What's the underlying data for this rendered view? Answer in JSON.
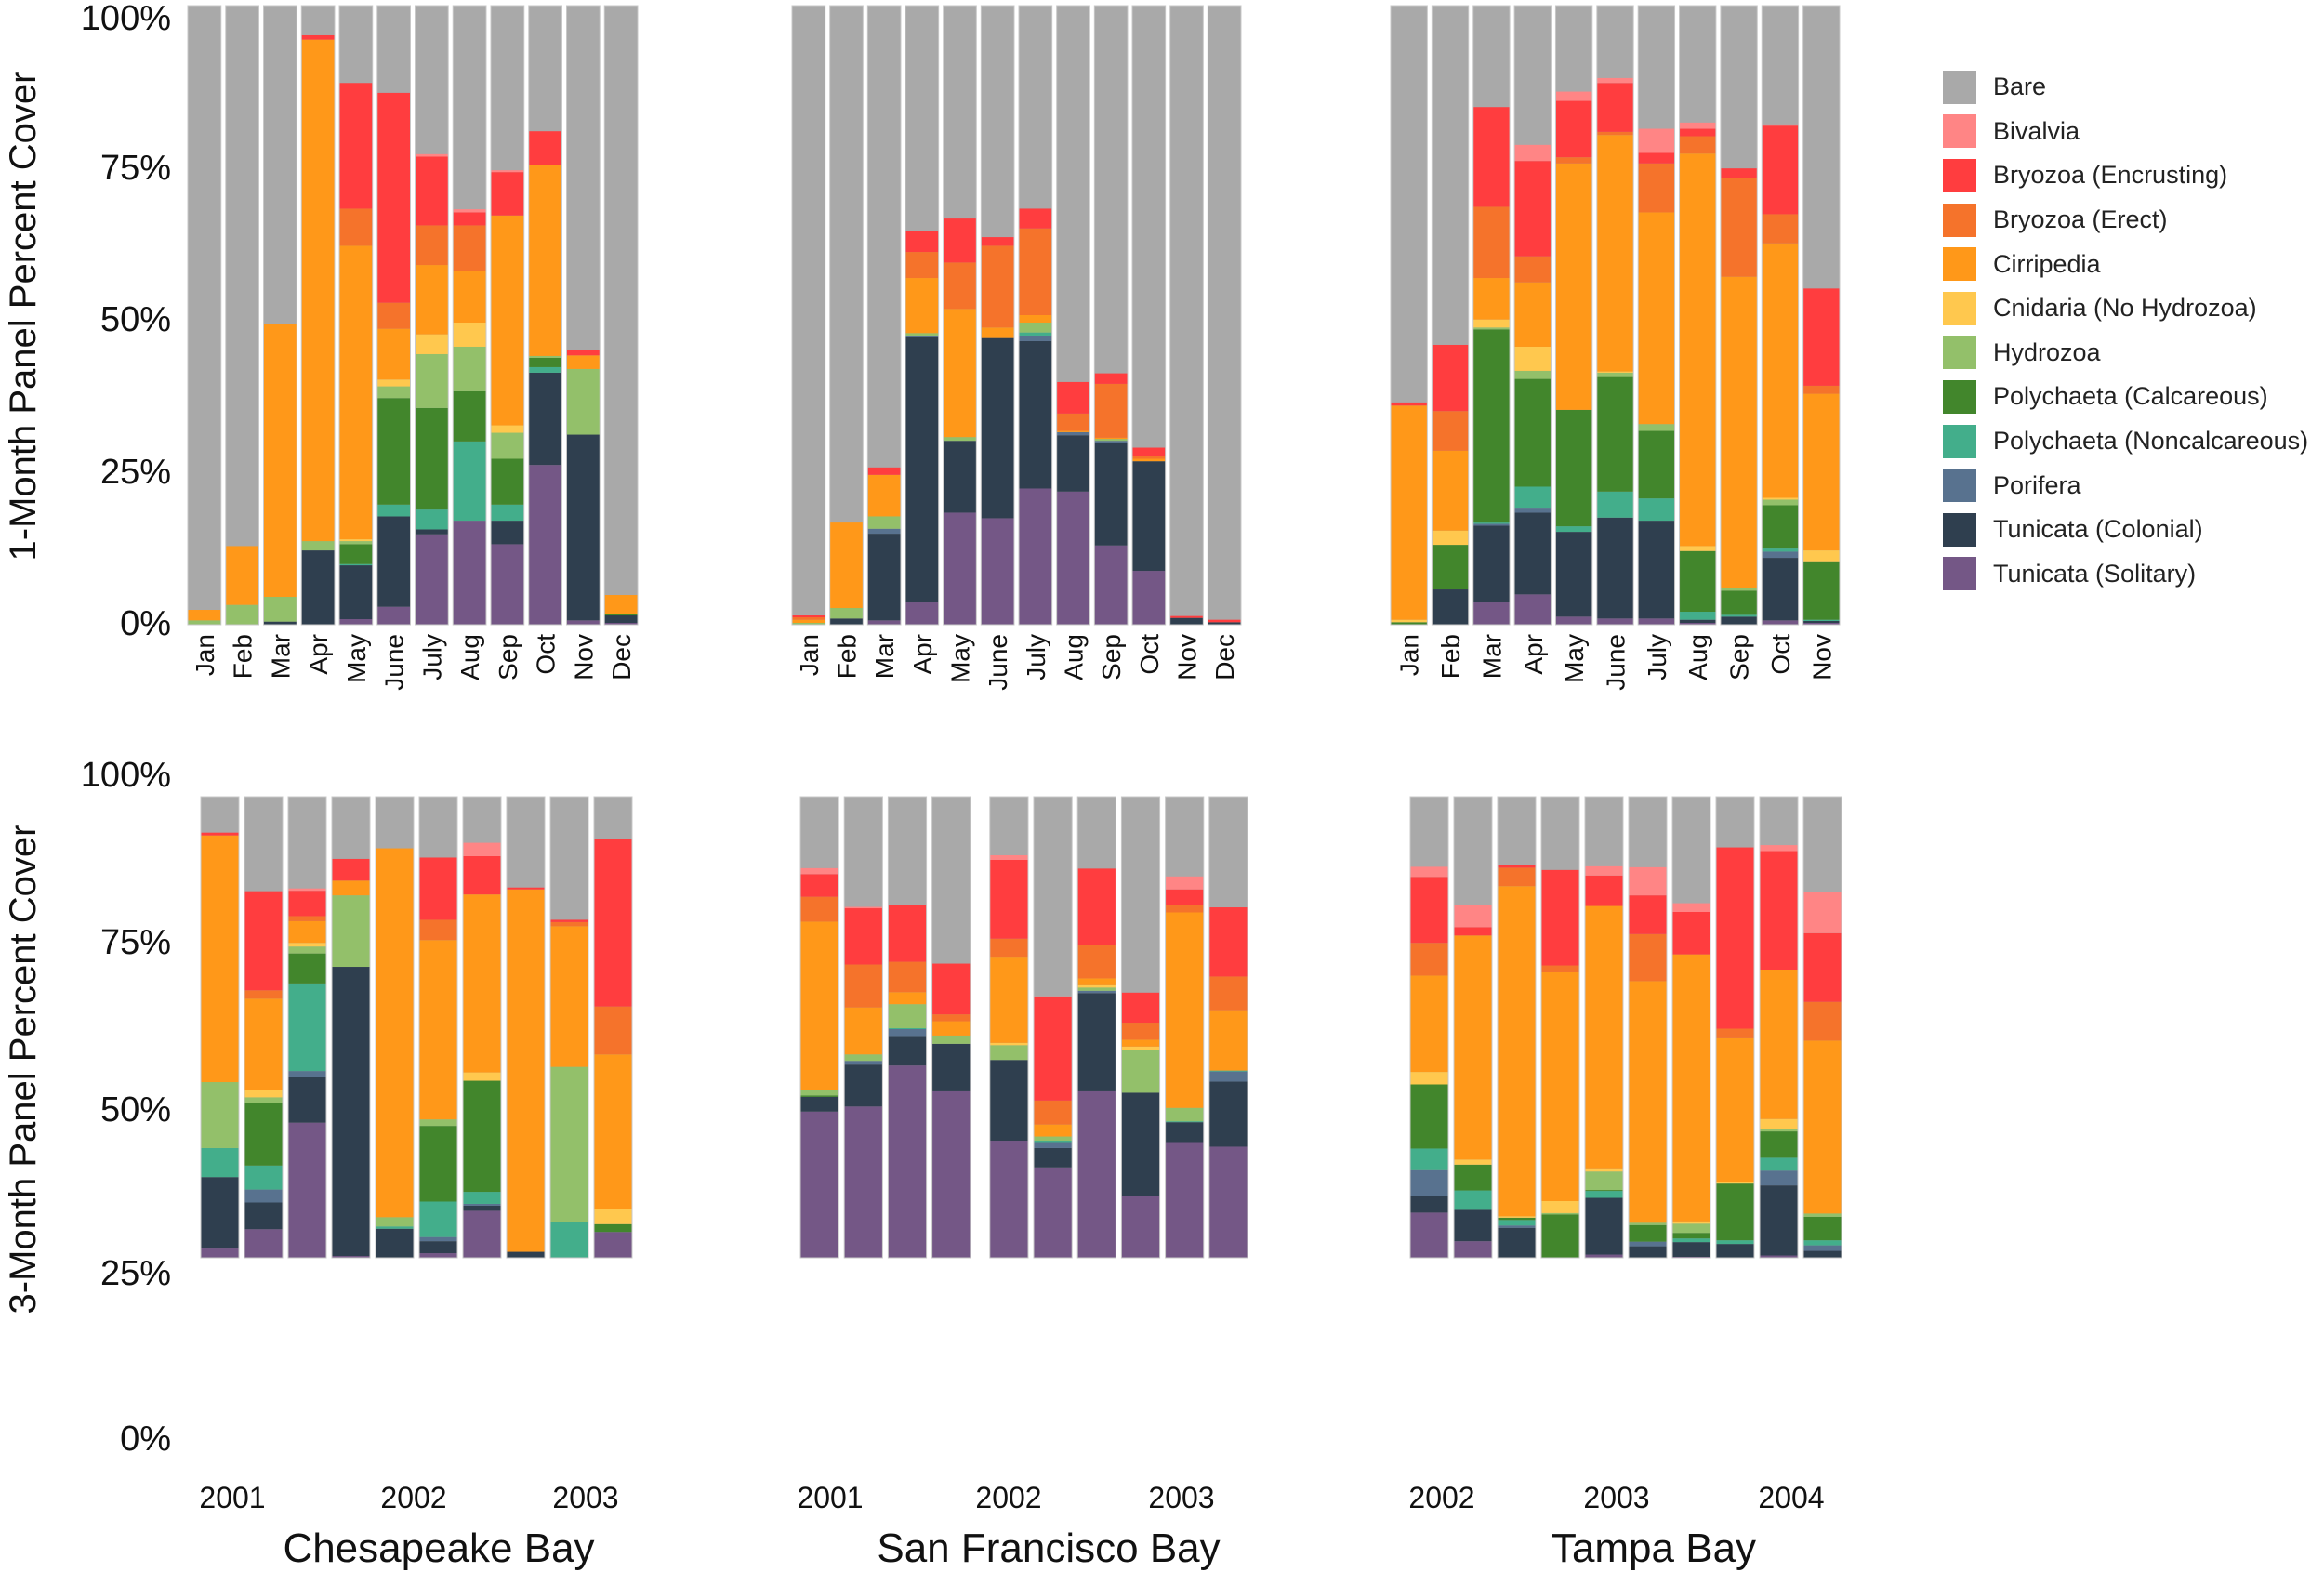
{
  "chart_data": {
    "type": "bar",
    "stacked": true,
    "y_axis_titles": [
      "1-Month Panel Percent Cover",
      "3-Month Panel Percent Cover"
    ],
    "y_ticks": [
      "0%",
      "25%",
      "50%",
      "75%",
      "100%"
    ],
    "ylim": [
      0,
      100
    ],
    "legend_placement": "right",
    "legend": [
      {
        "name": "Bare",
        "color": "#a9a9a9"
      },
      {
        "name": "Bivalvia",
        "color": "#ff8585"
      },
      {
        "name": "Bryozoa (Encrusting)",
        "color": "#ff3d3f"
      },
      {
        "name": "Bryozoa (Erect)",
        "color": "#f5732b"
      },
      {
        "name": "Cirripedia",
        "color": "#ff9819"
      },
      {
        "name": "Cnidaria (No Hydrozoa)",
        "color": "#ffc84e"
      },
      {
        "name": "Hydrozoa",
        "color": "#93c06a"
      },
      {
        "name": "Polychaeta (Calcareous)",
        "color": "#42862c"
      },
      {
        "name": "Polychaeta (Noncalcareous)",
        "color": "#43ae8b"
      },
      {
        "name": "Porifera",
        "color": "#58728f"
      },
      {
        "name": "Tunicata (Colonial)",
        "color": "#2f3f4f"
      },
      {
        "name": "Tunicata (Solitary)",
        "color": "#745786"
      }
    ],
    "stack_order_bottom_to_top": [
      "Tunicata (Solitary)",
      "Tunicata (Colonial)",
      "Porifera",
      "Polychaeta (Noncalcareous)",
      "Polychaeta (Calcareous)",
      "Hydrozoa",
      "Cnidaria (No Hydrozoa)",
      "Cirripedia",
      "Bryozoa (Erect)",
      "Bryozoa (Encrusting)",
      "Bivalvia"
    ],
    "remainder_series": "Bare",
    "panels": [
      {
        "site": "Chesapeake Bay",
        "row": "1-Month",
        "categories": [
          "Jan",
          "Feb",
          "Mar",
          "Apr",
          "May",
          "June",
          "July",
          "Aug",
          "Sep",
          "Oct",
          "Nov",
          "Dec"
        ],
        "bars": [
          [
            0,
            0,
            0,
            0,
            0,
            0.7,
            0,
            1.7,
            0,
            0,
            0
          ],
          [
            0,
            0,
            0,
            0,
            0,
            3.2,
            0,
            9.5,
            0,
            0,
            0
          ],
          [
            0,
            0.5,
            0,
            0,
            0,
            4,
            0,
            44,
            0,
            0,
            0
          ],
          [
            0,
            12,
            0,
            0,
            0,
            1.5,
            0,
            81,
            0,
            0.7,
            0
          ],
          [
            0.9,
            8.7,
            0,
            0.2,
            3.2,
            0.5,
            0.3,
            47.4,
            6,
            20.3,
            0
          ],
          [
            2.9,
            14.6,
            0,
            1.9,
            17.2,
            1.9,
            1.1,
            8.2,
            4.2,
            33.9,
            0
          ],
          [
            14.6,
            0.8,
            0,
            3.2,
            16.4,
            8.7,
            3.2,
            11.2,
            6.4,
            11.1,
            0.4
          ],
          [
            16.8,
            0,
            0,
            12.8,
            8.1,
            7.2,
            3.9,
            8.4,
            7.3,
            2.1,
            0.5
          ],
          [
            13,
            3.8,
            0,
            2.6,
            7.4,
            4.2,
            1.2,
            33.9,
            0,
            7,
            0.3
          ],
          [
            25.8,
            14.9,
            0,
            0.9,
            1.5,
            0.3,
            0,
            30.9,
            0,
            5.4,
            0
          ],
          [
            0.7,
            30,
            0,
            0,
            0,
            10.6,
            0,
            2.2,
            0,
            0.9,
            0
          ],
          [
            0.3,
            1.2,
            0,
            0,
            0.3,
            0,
            0,
            3,
            0,
            0,
            0
          ]
        ]
      },
      {
        "site": "San Francisco Bay",
        "row": "1-Month",
        "categories": [
          "Jan",
          "Feb",
          "Mar",
          "Apr",
          "May",
          "June",
          "July",
          "Aug",
          "Sep",
          "Oct",
          "Nov",
          "Dec"
        ],
        "bars": [
          [
            0,
            0,
            0,
            0,
            0,
            0.3,
            0,
            0.5,
            0.4,
            0.3,
            0
          ],
          [
            0,
            1,
            0,
            0,
            0,
            1.7,
            0,
            13.8,
            0,
            0,
            0
          ],
          [
            0.7,
            14,
            0.8,
            0,
            0,
            2,
            0,
            6.7,
            0,
            1.2,
            0
          ],
          [
            3.6,
            42.8,
            0.3,
            0,
            0,
            0.4,
            0,
            8.9,
            4.2,
            3.4,
            0
          ],
          [
            18.1,
            11.6,
            0,
            0,
            0,
            0.6,
            0,
            20.7,
            7.5,
            7.1,
            0
          ],
          [
            17.2,
            29.1,
            0,
            0,
            0,
            0,
            0,
            1.7,
            13.2,
            1.4,
            0
          ],
          [
            22,
            23.8,
            0.9,
            0.5,
            0,
            1.6,
            0,
            1.2,
            14,
            3.2,
            0
          ],
          [
            21.5,
            9.1,
            0.5,
            0,
            0,
            0,
            0,
            0.2,
            2.8,
            5.1,
            0
          ],
          [
            12.8,
            16.6,
            0.3,
            0,
            0,
            0.3,
            0,
            0.2,
            8.7,
            1.7,
            0
          ],
          [
            8.7,
            17.7,
            0,
            0,
            0,
            0,
            0,
            0.4,
            0.5,
            1.3,
            0
          ],
          [
            0,
            1.1,
            0,
            0,
            0,
            0,
            0,
            0,
            0,
            0.3,
            0
          ],
          [
            0,
            0.4,
            0,
            0,
            0,
            0,
            0,
            0,
            0,
            0.4,
            0
          ]
        ]
      },
      {
        "site": "Tampa Bay",
        "row": "1-Month",
        "categories": [
          "Jan",
          "Feb",
          "Mar",
          "Apr",
          "May",
          "June",
          "July",
          "Aug",
          "Sep",
          "Oct",
          "Nov"
        ],
        "bars": [
          [
            0,
            0,
            0,
            0,
            0.4,
            0,
            0.4,
            34.6,
            0,
            0.5,
            0
          ],
          [
            0,
            5.7,
            0,
            0,
            7.2,
            0,
            2.3,
            12.9,
            6.4,
            10.7,
            0
          ],
          [
            3.6,
            12.4,
            0.3,
            0.2,
            31.2,
            0.3,
            1.3,
            6.7,
            11.5,
            16.1,
            0
          ],
          [
            4.9,
            13.2,
            0.8,
            3.4,
            17.4,
            1.3,
            3.9,
            10.4,
            4.2,
            15.4,
            2.6
          ],
          [
            1.3,
            13.7,
            0,
            0.9,
            18.8,
            0,
            0,
            39.8,
            1,
            9.1,
            1.5
          ],
          [
            1,
            16.3,
            0,
            4.2,
            18.5,
            0.7,
            0.2,
            38.2,
            0.5,
            7.9,
            0.8
          ],
          [
            1,
            15.8,
            0,
            3.6,
            10.9,
            1.1,
            0,
            34.2,
            7.9,
            1.7,
            3.9
          ],
          [
            0.3,
            0.5,
            0,
            1.3,
            9.8,
            0,
            0.8,
            63.4,
            2.8,
            1.2,
            1
          ],
          [
            0,
            1.3,
            0,
            0.3,
            3.9,
            0.4,
            0,
            50.3,
            16,
            1.5,
            0
          ],
          [
            0.7,
            10.1,
            1,
            0.5,
            7,
            0.9,
            0.3,
            41.1,
            4.7,
            14.3,
            0.2
          ],
          [
            0.3,
            0.3,
            0,
            0.2,
            9.3,
            0,
            1.9,
            25.3,
            1.3,
            15.7,
            0
          ]
        ]
      },
      {
        "site": "Chesapeake Bay",
        "row": "3-Month",
        "year_labels": [
          "2001",
          "2002",
          "2003"
        ],
        "bars": [
          [
            2,
            15.5,
            0,
            6.3,
            0,
            14.3,
            0,
            53.5,
            0,
            0.6,
            0
          ],
          [
            6.2,
            5.8,
            2.8,
            5.2,
            13.5,
            1.3,
            1.5,
            19.9,
            1.8,
            21.5,
            0
          ],
          [
            29.3,
            10,
            1.2,
            19,
            6.5,
            1.5,
            0.8,
            4.7,
            1.1,
            5.5,
            0.5
          ],
          [
            0.4,
            62.7,
            0,
            0,
            0,
            15.5,
            0,
            3.2,
            0,
            4.7,
            0
          ],
          [
            0,
            6.3,
            0,
            0.5,
            0,
            2,
            0,
            80,
            0,
            0,
            0
          ],
          [
            1,
            2.6,
            0.9,
            7.7,
            16.4,
            1.4,
            0,
            38.9,
            4.4,
            13.5,
            0
          ],
          [
            10.2,
            1.1,
            0.4,
            2.6,
            24.1,
            0,
            1.8,
            38.6,
            0,
            8.3,
            2.9
          ],
          [
            0,
            1.3,
            0,
            0,
            0,
            0,
            0,
            78.6,
            0,
            0.4,
            0
          ],
          [
            0,
            0,
            0,
            7.8,
            0,
            33.6,
            0,
            30.5,
            0.9,
            0.5,
            0
          ],
          [
            5.6,
            0,
            0,
            0,
            1.7,
            0,
            3.2,
            33.6,
            10.4,
            36.3,
            0
          ]
        ]
      },
      {
        "site": "San Francisco Bay",
        "row": "3-Month",
        "year_labels": [
          "2001",
          "2002",
          "2003"
        ],
        "bars": [
          [
            31.7,
            3.2,
            0,
            0,
            0.3,
            1.2,
            0,
            36.5,
            5.4,
            4.9,
            1.3
          ],
          [
            32.8,
            9.1,
            0.8,
            0,
            0,
            1.4,
            0,
            10.2,
            9.3,
            12.2,
            0.3
          ],
          [
            41.7,
            6.4,
            1.5,
            0.2,
            0,
            5.2,
            0,
            2.6,
            6.6,
            12.3,
            0
          ],
          [
            36.1,
            10.3,
            0,
            0,
            0,
            1.8,
            0,
            3.1,
            1.5,
            11,
            0
          ],
          [
            25.4,
            17.5,
            0,
            0,
            0,
            3.2,
            0.5,
            18.7,
            3.9,
            17.1,
            1
          ],
          [
            19.6,
            4.2,
            1.3,
            0.3,
            0,
            0.9,
            0,
            2.6,
            5.2,
            22.4,
            0.2
          ],
          [
            36.1,
            21.3,
            0.5,
            0,
            0,
            0.7,
            0.5,
            1.5,
            7.3,
            16.5,
            0
          ],
          [
            13.4,
            22.4,
            0,
            0,
            0,
            9.2,
            0.8,
            1.5,
            3.7,
            6.5,
            0
          ],
          [
            25.1,
            4.3,
            0,
            0.2,
            0,
            2.9,
            0,
            42.4,
            1.6,
            3.4,
            2.8
          ],
          [
            24.1,
            14.1,
            2.2,
            0.2,
            0,
            0,
            0,
            13.1,
            7.3,
            15,
            0
          ]
        ]
      },
      {
        "site": "Tampa Bay",
        "row": "3-Month",
        "year_labels": [
          "2002",
          "2003",
          "2004"
        ],
        "bars": [
          [
            9.8,
            3.7,
            5.5,
            4.7,
            13.9,
            0,
            2.7,
            20.9,
            7.1,
            14.3,
            2.2
          ],
          [
            3.6,
            6.8,
            0,
            4.2,
            5.6,
            0,
            1.1,
            48.6,
            0,
            1.8,
            4.9
          ],
          [
            0,
            6.5,
            0.5,
            1.2,
            0.5,
            0,
            0.3,
            71.6,
            4,
            0.5,
            0
          ],
          [
            0,
            0,
            0,
            0,
            9.4,
            0.3,
            2.6,
            49.6,
            1.5,
            20.7,
            0
          ],
          [
            0.7,
            12.3,
            0,
            1.5,
            0.2,
            4,
            0.7,
            56.9,
            0,
            6.6,
            2
          ],
          [
            0,
            2.5,
            1,
            0,
            3.6,
            0.5,
            0,
            52.4,
            10.2,
            8.4,
            6.1
          ],
          [
            0.2,
            3.2,
            0,
            0.8,
            1.2,
            2,
            0.5,
            57.9,
            0,
            9.2,
            1.9
          ],
          [
            0,
            3,
            0,
            0.8,
            12.3,
            0,
            0.3,
            31.2,
            2.1,
            39.3,
            0
          ],
          [
            0.5,
            15.2,
            3.2,
            2.8,
            5.7,
            0.5,
            2.2,
            32.4,
            0,
            25.7,
            1.3
          ],
          [
            0,
            1.5,
            1.2,
            1.1,
            5.1,
            0.7,
            0,
            37.5,
            8.4,
            14.9,
            8.9
          ]
        ]
      }
    ],
    "site_labels": [
      "Chesapeake Bay",
      "San Francisco Bay",
      "Tampa Bay"
    ]
  }
}
